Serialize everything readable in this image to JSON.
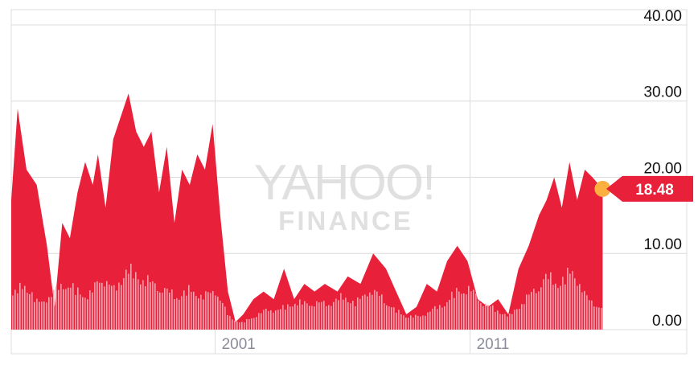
{
  "chart_data": {
    "type": "area",
    "title": "",
    "xlabel": "",
    "ylabel": "",
    "ylim": [
      0,
      42
    ],
    "xlim": [
      1993.0,
      2019.5
    ],
    "y_ticks": [
      "40.00",
      "30.00",
      "20.00",
      "10.00",
      "0.00"
    ],
    "x_ticks": [
      {
        "label": "2001",
        "x": 2001
      },
      {
        "label": "2011",
        "x": 2011
      }
    ],
    "grid": true,
    "current_price": {
      "value": 18.48,
      "label": "18.48",
      "x": 2016.2
    },
    "watermark": {
      "line1": "YAHOO!",
      "line2": "FINANCE"
    },
    "colors": {
      "area": "#e8203a",
      "volume": "#f7a1ae",
      "marker": "#fbb040",
      "grid": "#dcdcdc",
      "price_flag": "#e8203a"
    },
    "series": [
      {
        "name": "Price",
        "x": [
          1993.0,
          1993.25,
          1993.6,
          1994.0,
          1994.4,
          1994.7,
          1995.0,
          1995.3,
          1995.6,
          1995.9,
          1996.2,
          1996.4,
          1996.7,
          1997.0,
          1997.3,
          1997.6,
          1997.9,
          1998.2,
          1998.5,
          1998.8,
          1999.1,
          1999.4,
          1999.7,
          2000.0,
          2000.3,
          2000.6,
          2000.9,
          2001.2,
          2001.5,
          2001.8,
          2002.1,
          2002.5,
          2002.9,
          2003.3,
          2003.7,
          2004.1,
          2004.5,
          2004.9,
          2005.3,
          2005.8,
          2006.2,
          2006.7,
          2007.2,
          2007.7,
          2008.1,
          2008.5,
          2008.9,
          2009.3,
          2009.7,
          2010.1,
          2010.5,
          2010.9,
          2011.3,
          2011.7,
          2012.1,
          2012.5,
          2012.9,
          2013.3,
          2013.7,
          2014.0,
          2014.3,
          2014.6,
          2014.9,
          2015.2,
          2015.5,
          2015.8,
          2016.2
        ],
        "y": [
          17,
          29,
          21,
          19,
          11,
          3,
          14,
          12,
          18,
          22,
          19,
          23,
          16,
          25,
          28,
          31,
          26,
          24,
          26,
          18,
          24,
          14,
          21,
          19,
          23,
          21,
          27,
          15,
          5,
          1,
          2,
          4,
          5,
          4,
          8,
          4,
          6,
          5,
          6,
          5,
          7,
          6,
          10,
          8,
          5,
          2,
          3,
          6,
          5,
          9,
          11,
          9,
          4,
          3,
          4,
          2,
          8,
          11,
          15,
          17,
          20,
          16,
          22,
          17,
          21,
          20,
          18.48
        ]
      },
      {
        "name": "Volume",
        "x": [
          1993.0,
          1993.5,
          1994.0,
          1994.5,
          1995.0,
          1995.5,
          1996.0,
          1996.5,
          1997.0,
          1997.5,
          1998.0,
          1998.5,
          1999.0,
          1999.5,
          2000.0,
          2000.5,
          2001.0,
          2001.5,
          2002.0,
          2002.5,
          2003.0,
          2003.5,
          2004.0,
          2004.5,
          2005.0,
          2005.5,
          2006.0,
          2006.5,
          2007.0,
          2007.5,
          2008.0,
          2008.5,
          2009.0,
          2009.5,
          2010.0,
          2010.5,
          2011.0,
          2011.5,
          2012.0,
          2012.5,
          2013.0,
          2013.5,
          2014.0,
          2014.5,
          2015.0,
          2015.5,
          2016.2
        ],
        "y": [
          5,
          7,
          4,
          5,
          7,
          6,
          5,
          8,
          6,
          9,
          8,
          7,
          6,
          5,
          6,
          5,
          6,
          2,
          1,
          2,
          3,
          3,
          4,
          4,
          4,
          4,
          5,
          4,
          6,
          5,
          3,
          2,
          2,
          3,
          4,
          6,
          6,
          4,
          3,
          2,
          4,
          6,
          8,
          7,
          9,
          5,
          3
        ]
      }
    ]
  }
}
